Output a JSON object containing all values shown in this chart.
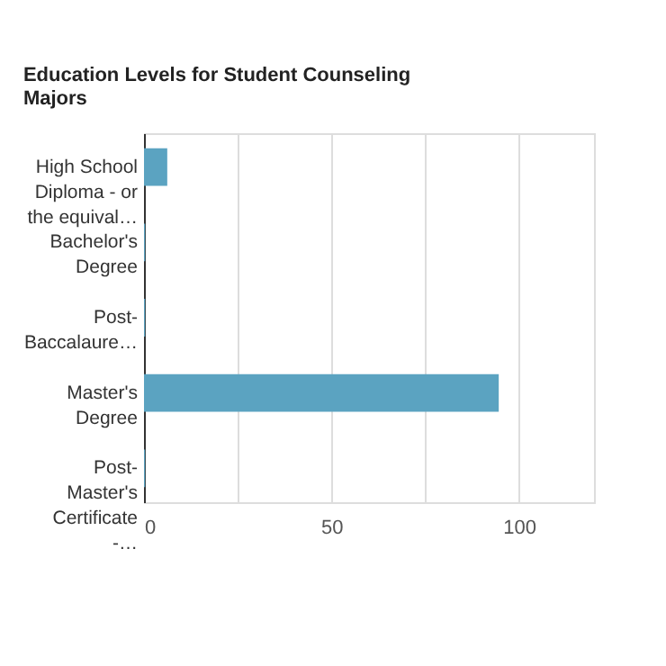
{
  "chart_data": {
    "type": "bar",
    "orientation": "horizontal",
    "title": "Education Levels for Student Counseling Majors",
    "categories": [
      "High School Diploma - or the equival…",
      "Bachelor's Degree",
      "Post-Baccalaure…",
      "Master's Degree",
      "Post-Master's Certificate -…"
    ],
    "values": [
      6.2,
      0.3,
      0.3,
      94.6,
      0.3
    ],
    "color": "#5ba3c1",
    "xlim": [
      0,
      120
    ],
    "xticks": [
      0,
      {
        "value": 25,
        "label": null
      },
      50,
      {
        "value": 75,
        "label": null
      },
      100
    ],
    "grid": "x"
  }
}
